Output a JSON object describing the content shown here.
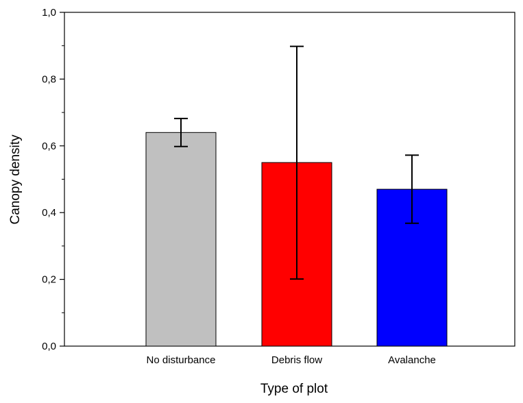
{
  "chart_data": {
    "type": "bar",
    "title": "",
    "xlabel": "Type of plot",
    "ylabel": "Canopy density",
    "categories": [
      "No disturbance",
      "Debris flow",
      "Avalanche"
    ],
    "values": [
      0.64,
      0.55,
      0.47
    ],
    "error_low": [
      0.598,
      0.201,
      0.368
    ],
    "error_high": [
      0.682,
      0.898,
      0.572
    ],
    "bar_colors": [
      "#c0c0c0",
      "#ff0000",
      "#0000ff"
    ],
    "ylim": [
      0.0,
      1.0
    ],
    "yticks": [
      0.0,
      0.2,
      0.4,
      0.6,
      0.8,
      1.0
    ],
    "ytick_labels": [
      "0,0",
      "0,2",
      "0,4",
      "0,6",
      "0,8",
      "1,0"
    ],
    "grid": false,
    "legend": "none"
  }
}
